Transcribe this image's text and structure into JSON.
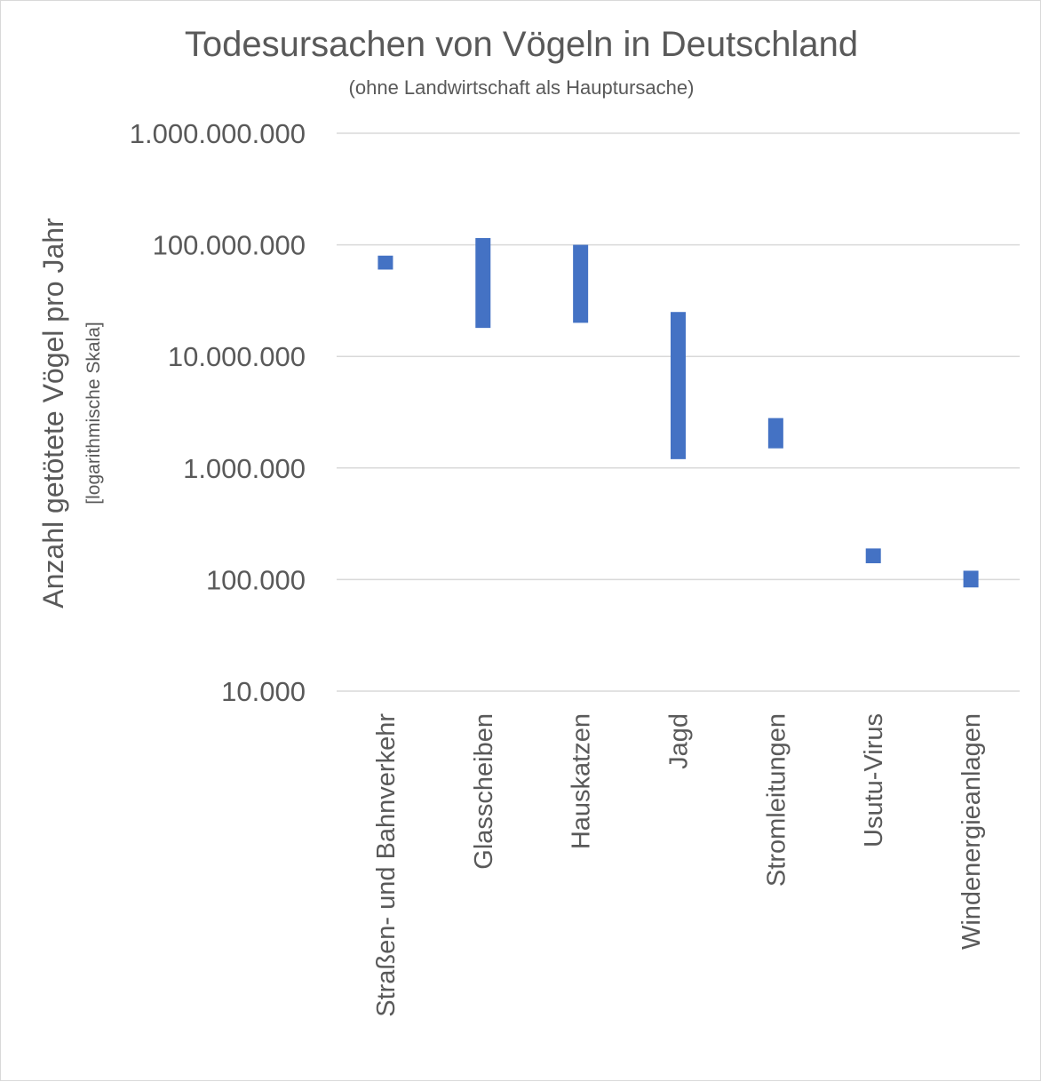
{
  "chart_data": {
    "type": "bar",
    "subtype": "floating-range",
    "title": "Todesursachen von Vögeln in Deutschland",
    "subtitle": "(ohne Landwirtschaft als Hauptursache)",
    "ylabel": "Anzahl getötete Vögel pro Jahr",
    "ylabel_note": "[logarithmische Skala]",
    "xlabel": "",
    "yscale": "log",
    "ylim": [
      10000,
      1000000000
    ],
    "yticks": [
      {
        "value": 10000,
        "label": "10.000"
      },
      {
        "value": 100000,
        "label": "100.000"
      },
      {
        "value": 1000000,
        "label": "1.000.000"
      },
      {
        "value": 10000000,
        "label": "10.000.000"
      },
      {
        "value": 100000000,
        "label": "100.000.000"
      },
      {
        "value": 1000000000,
        "label": "1.000.000.000"
      }
    ],
    "grid": true,
    "legend": "none",
    "bar_color": "#4472c4",
    "categories": [
      "Straßen- und Bahnverkehr",
      "Glasscheiben",
      "Hauskatzen",
      "Jagd",
      "Stromleitungen",
      "Usutu-Virus",
      "Windenergieanlagen"
    ],
    "ranges": [
      {
        "low": 60000000,
        "high": 80000000
      },
      {
        "low": 18000000,
        "high": 115000000
      },
      {
        "low": 20000000,
        "high": 100000000
      },
      {
        "low": 1200000,
        "high": 25000000
      },
      {
        "low": 1500000,
        "high": 2800000
      },
      {
        "low": 140000,
        "high": 190000
      },
      {
        "low": 85000,
        "high": 120000
      }
    ]
  }
}
